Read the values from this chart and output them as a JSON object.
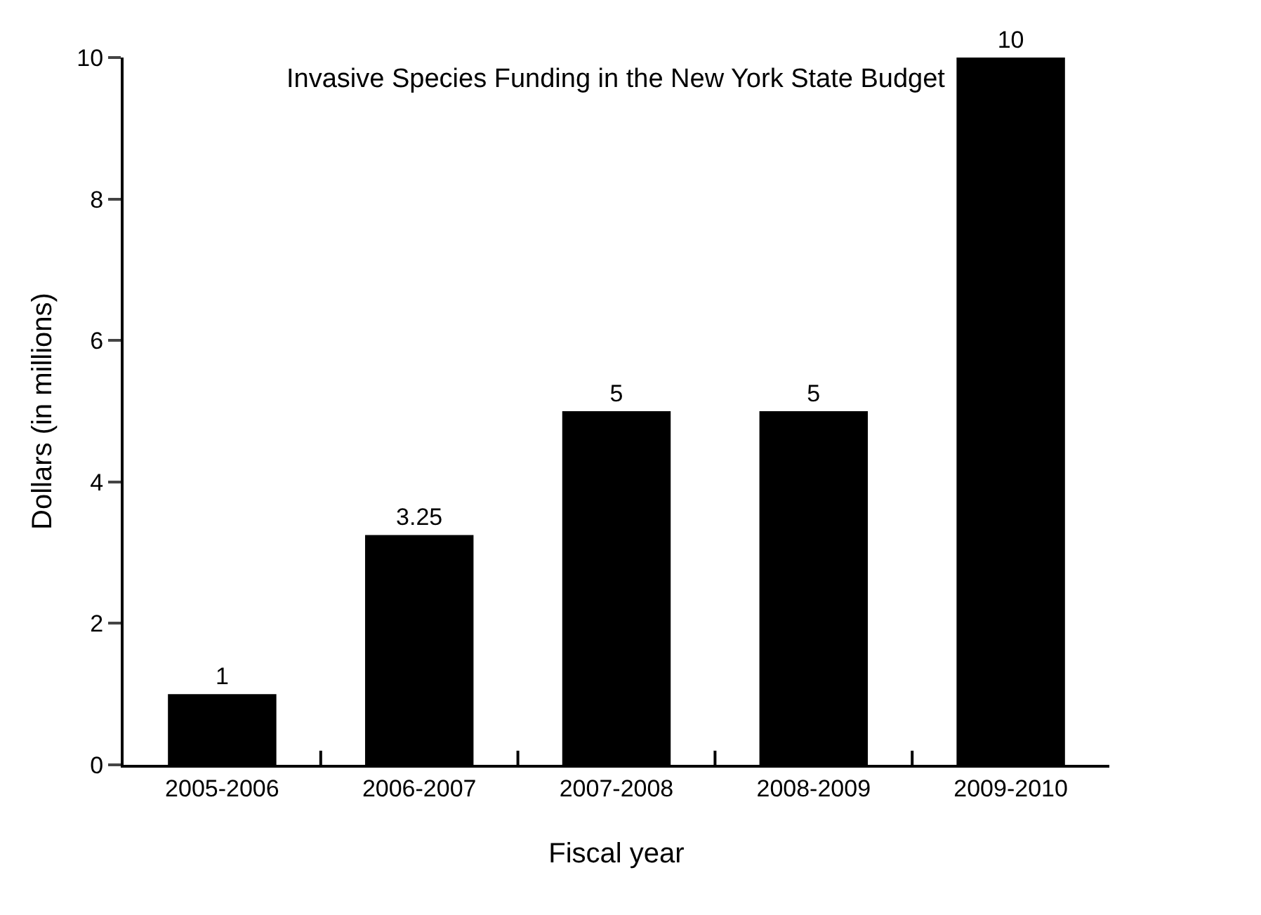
{
  "chart_data": {
    "type": "bar",
    "title": "Invasive Species Funding in the New York State Budget",
    "xlabel": "Fiscal year",
    "ylabel": "Dollars (in millions)",
    "categories": [
      "2005-2006",
      "2006-2007",
      "2007-2008",
      "2008-2009",
      "2009-2010"
    ],
    "values": [
      1,
      3.25,
      5,
      5,
      10
    ],
    "color": "#000000",
    "ylim": [
      0,
      10
    ],
    "yticks": [
      0,
      2,
      4,
      6,
      8,
      10
    ],
    "data_labels": true
  }
}
